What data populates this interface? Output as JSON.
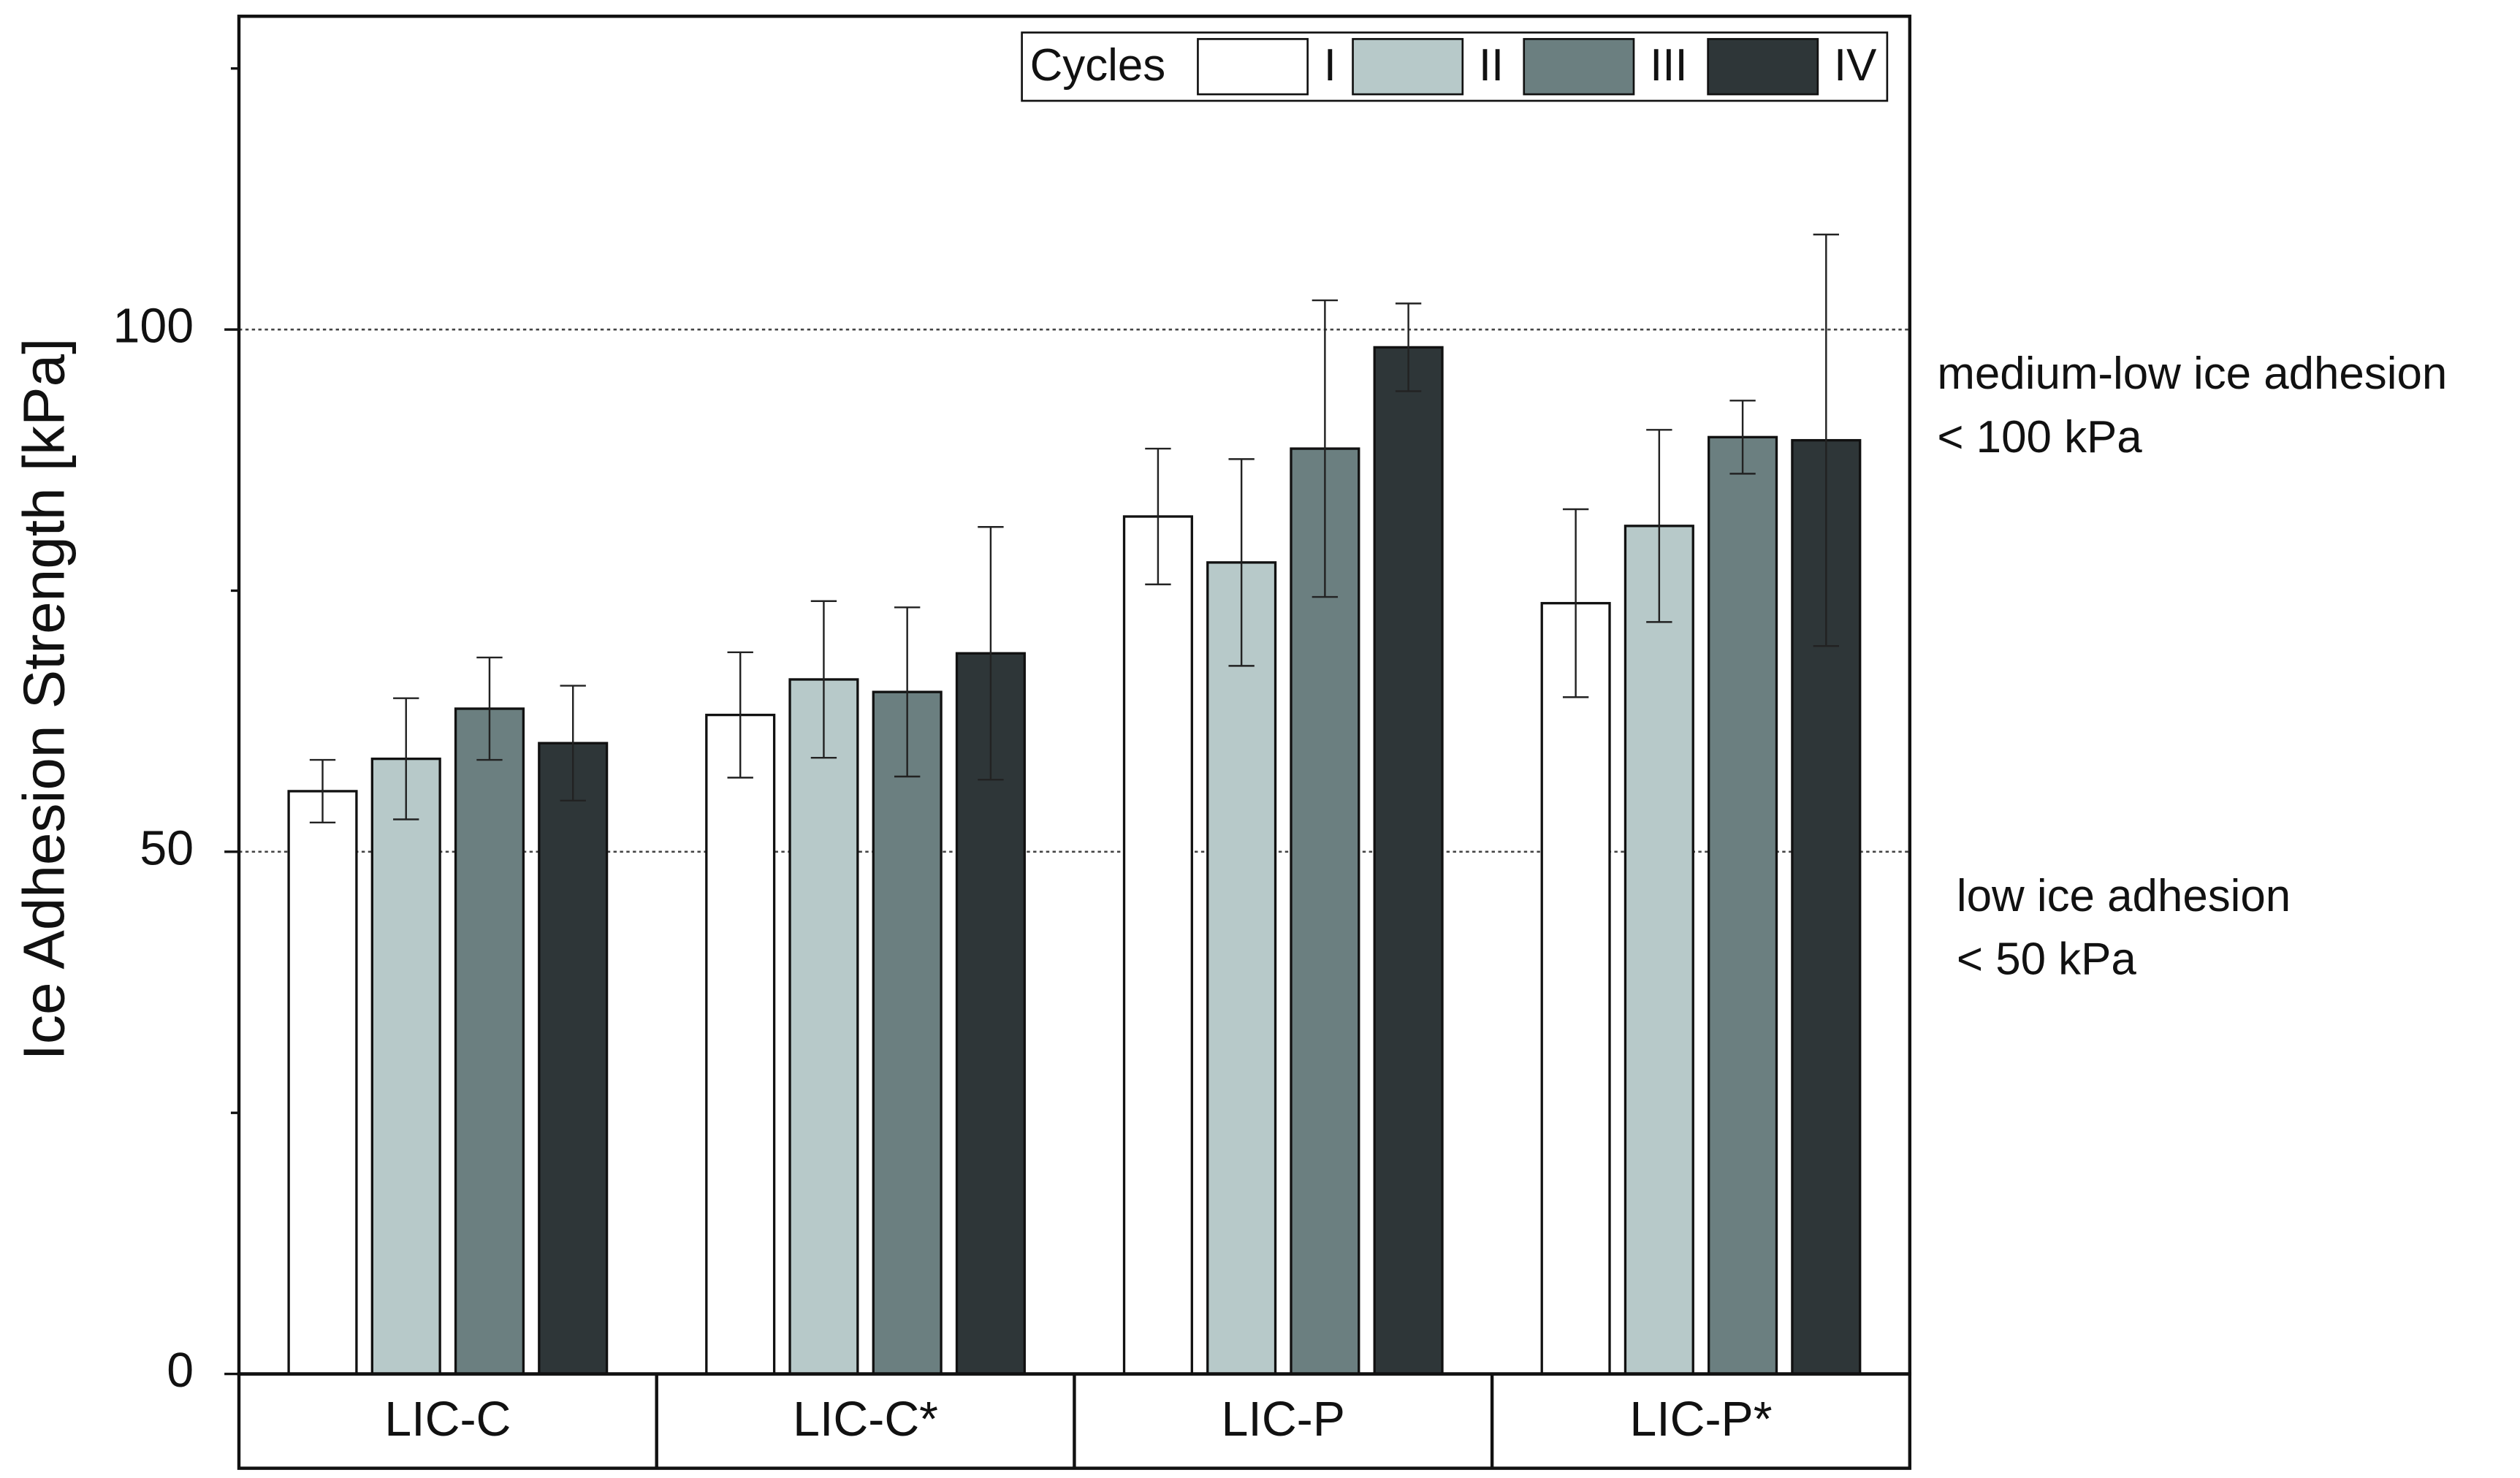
{
  "chart_data": {
    "type": "bar",
    "y_label": "Ice Adhesion Strength [kPa]",
    "categories": [
      "LIC-C",
      "LIC-C*",
      "LIC-P",
      "LIC-P*"
    ],
    "legend_title": "Cycles",
    "legend_position": "top-right",
    "series": [
      {
        "name": "I",
        "color": "#ffffff",
        "values": [
          55.8,
          63.1,
          82.1,
          73.8
        ],
        "errors": [
          3.0,
          6.0,
          6.5,
          9.0
        ]
      },
      {
        "name": "II",
        "color": "#b7c9c9",
        "values": [
          58.9,
          66.5,
          77.7,
          81.2
        ],
        "errors": [
          5.8,
          7.5,
          9.9,
          9.2
        ]
      },
      {
        "name": "III",
        "color": "#6b7f80",
        "values": [
          63.7,
          65.3,
          88.6,
          89.7
        ],
        "errors": [
          4.9,
          8.1,
          14.2,
          3.5
        ]
      },
      {
        "name": "IV",
        "color": "#2e3638",
        "values": [
          60.4,
          69.0,
          98.3,
          89.4
        ],
        "errors": [
          5.5,
          12.1,
          4.2,
          19.7
        ]
      }
    ],
    "ylim": [
      0,
      130
    ],
    "yticks": [
      0,
      50,
      100
    ],
    "yminor_ticks": [
      25,
      75,
      125
    ],
    "reference_lines": [
      {
        "value": 100,
        "lines": [
          "medium-low ice adhesion",
          "< 100 kPa"
        ]
      },
      {
        "value": 50,
        "lines": [
          "low ice adhesion",
          "< 50 kPa"
        ]
      }
    ]
  }
}
